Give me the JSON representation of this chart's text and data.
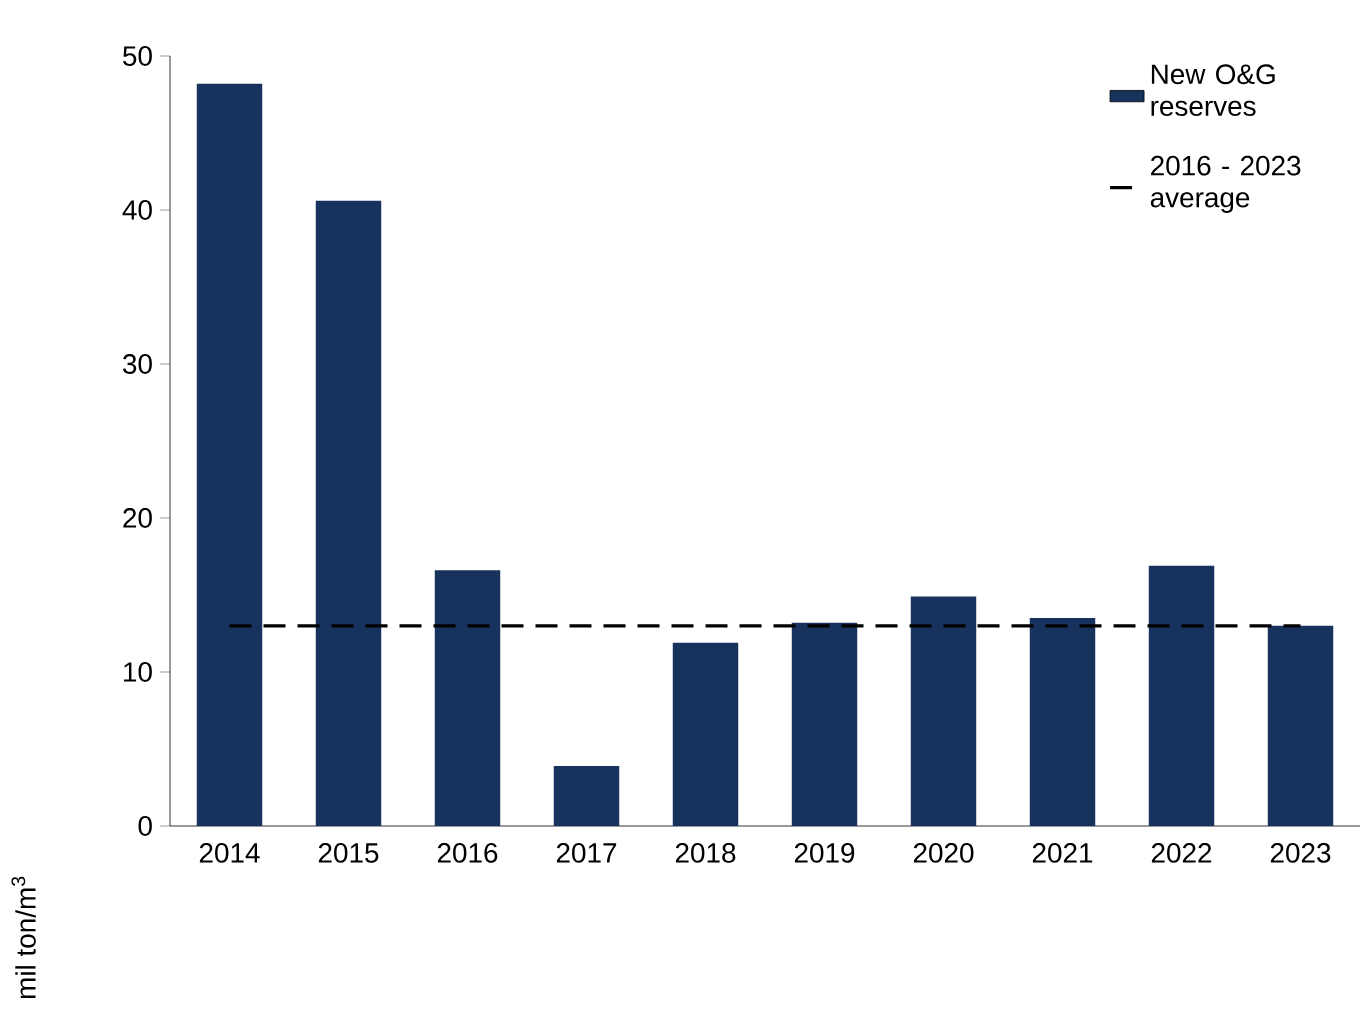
{
  "chart_data": {
    "type": "bar",
    "ylabel": "mil ton/m$^{3}$",
    "categories": [
      "2014",
      "2015",
      "2016",
      "2017",
      "2018",
      "2019",
      "2020",
      "2021",
      "2022",
      "2023"
    ],
    "series": [
      {
        "name": "New O&G reserves",
        "color": "#17325c",
        "values": [
          48.2,
          40.6,
          16.6,
          3.9,
          11.9,
          13.2,
          14.9,
          13.5,
          16.9,
          13.0
        ]
      },
      {
        "name": "2016 - 2023 average",
        "type": "line",
        "line_style": "dashed",
        "color": "#000000",
        "values": [
          13.0,
          13.0,
          13.0,
          13.0,
          13.0,
          13.0,
          13.0,
          13.0,
          13.0,
          13.0
        ]
      }
    ],
    "ylim": [
      0,
      50
    ],
    "yticks": [
      0,
      10,
      20,
      30,
      40,
      50
    ],
    "grid": false,
    "legend": "top right"
  }
}
